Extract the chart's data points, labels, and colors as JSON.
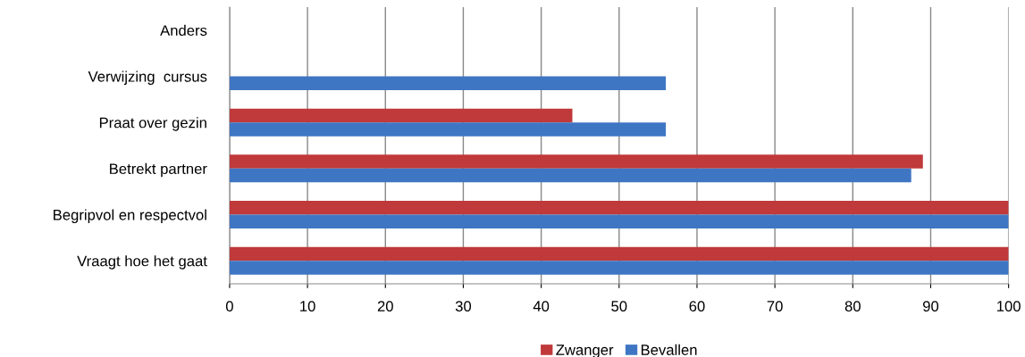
{
  "chart_data": {
    "type": "bar",
    "orientation": "horizontal",
    "categories": [
      "Anders",
      "Verwijzing  cursus",
      "Praat over gezin",
      "Betrekt partner",
      "Begripvol en respectvol",
      "Vraagt hoe het gaat"
    ],
    "series": [
      {
        "name": "Zwanger",
        "color": "#c0393b",
        "values": [
          0,
          0,
          44,
          89,
          100,
          100
        ]
      },
      {
        "name": "Bevallen",
        "color": "#3f76c3",
        "values": [
          0,
          56,
          56,
          87.5,
          100,
          100
        ]
      }
    ],
    "xlim": [
      0,
      100
    ],
    "xticks": [
      0,
      10,
      20,
      30,
      40,
      50,
      60,
      70,
      80,
      90,
      100
    ],
    "grid": "x",
    "legend": "bottom"
  }
}
